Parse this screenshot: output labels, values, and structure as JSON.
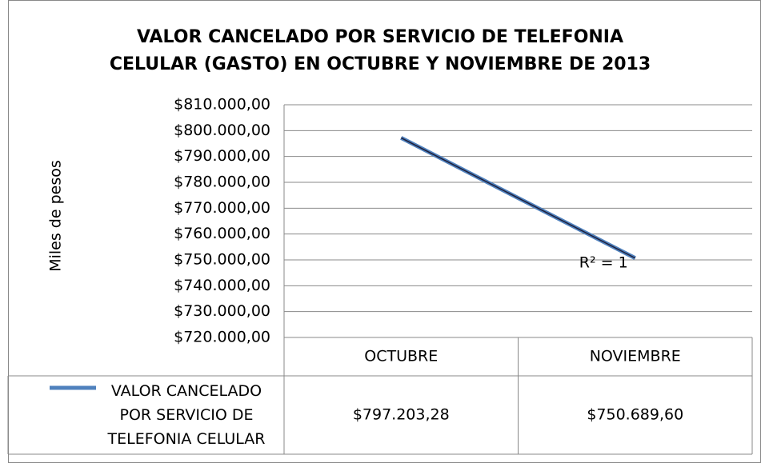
{
  "chart_data": {
    "type": "line",
    "title": "VALOR CANCELADO POR SERVICIO DE TELEFONIA CELULAR (GASTO) EN OCTUBRE Y NOVIEMBRE DE 2013",
    "y_label": "Miles de pesos",
    "categories": [
      "OCTUBRE",
      "NOVIEMBRE"
    ],
    "series": [
      {
        "name": "VALOR CANCELADO POR SERVICIO DE TELEFONIA CELULAR",
        "color": "#4f81bd",
        "values": [
          797203.28,
          750689.6
        ],
        "value_labels": [
          "$797.203,28",
          "$750.689,60"
        ]
      }
    ],
    "trendline": {
      "color": "#1f1f3a",
      "annotation": "R² = 1"
    },
    "ylim": [
      720000,
      810000
    ],
    "yticks": [
      {
        "value": 720000,
        "label": "$720.000,00"
      },
      {
        "value": 730000,
        "label": "$730.000,00"
      },
      {
        "value": 740000,
        "label": "$740.000,00"
      },
      {
        "value": 750000,
        "label": "$750.000,00"
      },
      {
        "value": 760000,
        "label": "$760.000,00"
      },
      {
        "value": 770000,
        "label": "$770.000,00"
      },
      {
        "value": 780000,
        "label": "$780.000,00"
      },
      {
        "value": 790000,
        "label": "$790.000,00"
      },
      {
        "value": 800000,
        "label": "$800.000,00"
      },
      {
        "value": 810000,
        "label": "$810.000,00"
      }
    ],
    "grid": true,
    "data_table": true
  }
}
